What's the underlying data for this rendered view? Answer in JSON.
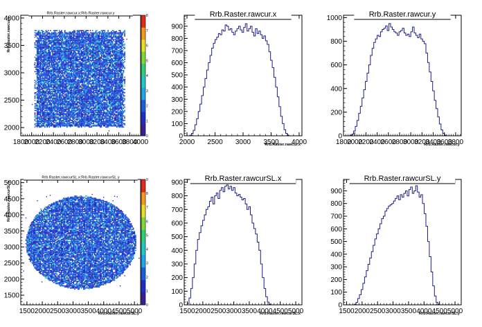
{
  "chart_data": [
    {
      "type": "heatmap",
      "title": "Rrb.Raster.rawcur.x:Rrb.Raster.rawcur.y",
      "xlabel": "",
      "ylabel": "Rrb.Raster.rawcur.y",
      "x_ticks": [
        "1800",
        "2000",
        "2200",
        "2400",
        "2600",
        "2800",
        "3000",
        "3200",
        "3400",
        "3600",
        "3800",
        "4000"
      ],
      "y_ticks": [
        "2000",
        "2500",
        "3000",
        "3500",
        "4000"
      ],
      "colorbar_ticks": [
        "0",
        "1",
        "2",
        "3",
        "4",
        "5",
        "6",
        "7",
        "8"
      ],
      "xlim": [
        1800,
        4000
      ],
      "ylim": [
        1850,
        4050
      ],
      "shape": "square",
      "extent": {
        "x": [
          2050,
          3700
        ],
        "y": [
          2000,
          3780
        ]
      }
    },
    {
      "type": "histogram",
      "title": "Rrb.Raster.rawcur.x",
      "xlabel": "Rrb.Raster.rawcur.x",
      "x_ticks": [
        "2000",
        "2500",
        "3000",
        "3500",
        "4000"
      ],
      "y_ticks": [
        "0",
        "100",
        "200",
        "300",
        "400",
        "500",
        "600",
        "700",
        "800",
        "900"
      ],
      "xlim": [
        1950,
        4050
      ],
      "ylim": [
        0,
        990
      ],
      "bins": {
        "start": 2050,
        "width": 30
      },
      "values": [
        5,
        20,
        45,
        90,
        140,
        200,
        260,
        330,
        400,
        470,
        540,
        600,
        660,
        720,
        760,
        790,
        810,
        840,
        830,
        870,
        860,
        910,
        900,
        870,
        880,
        850,
        830,
        860,
        880,
        900,
        870,
        850,
        890,
        920,
        860,
        880,
        900,
        850,
        820,
        880,
        840,
        860,
        830,
        800,
        820,
        780,
        750,
        690,
        620,
        560,
        480,
        400,
        320,
        240,
        160,
        100,
        50,
        20,
        5
      ]
    },
    {
      "type": "histogram",
      "title": "Rrb.Raster.rawcur.y",
      "xlabel": "Rrb.Raster.rawcur.y",
      "x_ticks": [
        "1800",
        "2000",
        "2200",
        "2400",
        "2600",
        "2800",
        "3000",
        "3200",
        "3400",
        "3600",
        "3800"
      ],
      "y_ticks": [
        "0",
        "200",
        "400",
        "600",
        "800",
        "1000"
      ],
      "xlim": [
        1800,
        3900
      ],
      "ylim": [
        0,
        1020
      ],
      "bins": {
        "start": 1920,
        "width": 30
      },
      "values": [
        5,
        15,
        40,
        80,
        130,
        190,
        250,
        320,
        390,
        460,
        530,
        600,
        680,
        740,
        790,
        820,
        850,
        840,
        880,
        900,
        910,
        930,
        890,
        950,
        920,
        900,
        880,
        870,
        850,
        880,
        890,
        910,
        870,
        850,
        860,
        840,
        880,
        920,
        870,
        850,
        830,
        860,
        820,
        800,
        780,
        700,
        620,
        540,
        460,
        380,
        300,
        230,
        160,
        100,
        50,
        20,
        5
      ]
    },
    {
      "type": "heatmap",
      "title": "Rrb.Raster.rawcurSL.x:Rrb.Raster.rawcurSL.y",
      "xlabel": "Rrb.Raster.rawcurSL.y",
      "ylabel": "Rrb.Raster.rawcurSL.y",
      "x_ticks": [
        "1500",
        "2000",
        "2500",
        "3000",
        "3500",
        "4000",
        "4500",
        "5000"
      ],
      "y_ticks": [
        "1500",
        "2000",
        "2500",
        "3000",
        "3500",
        "4000",
        "4500",
        "5000"
      ],
      "colorbar_ticks": [
        "0",
        "1",
        "2",
        "3",
        "4",
        "5",
        "6",
        "7",
        "8",
        "9"
      ],
      "xlim": [
        1300,
        5200
      ],
      "ylim": [
        1200,
        5100
      ],
      "shape": "disc",
      "extent": {
        "x": [
          1450,
          5050
        ],
        "y": [
          1700,
          4600
        ]
      }
    },
    {
      "type": "histogram",
      "title": "Rrb.Raster.rawcurSL.x",
      "xlabel": "Rrb.Raster.rawcurSL.x",
      "x_ticks": [
        "1500",
        "2000",
        "2500",
        "3000",
        "3500",
        "4000",
        "4500",
        "5000"
      ],
      "y_ticks": [
        "0",
        "100",
        "200",
        "300",
        "400",
        "500",
        "600",
        "700",
        "800",
        "900"
      ],
      "xlim": [
        1400,
        5200
      ],
      "ylim": [
        0,
        920
      ],
      "bins": {
        "start": 1500,
        "width": 55
      },
      "values": [
        10,
        50,
        120,
        200,
        300,
        400,
        480,
        530,
        580,
        620,
        660,
        700,
        720,
        760,
        790,
        740,
        800,
        820,
        780,
        840,
        860,
        830,
        870,
        880,
        850,
        870,
        840,
        860,
        820,
        800,
        810,
        790,
        770,
        780,
        740,
        700,
        720,
        660,
        600,
        560,
        520,
        460,
        400,
        300,
        200,
        120,
        60,
        20,
        5
      ]
    },
    {
      "type": "histogram",
      "title": "Rrb.Raster.rawcurSL.y",
      "xlabel": "Rrb.Raster.rawcurSL.y",
      "x_ticks": [
        "1500",
        "2000",
        "2500",
        "3000",
        "3500",
        "4000",
        "4500",
        "5000"
      ],
      "y_ticks": [
        "0",
        "100",
        "200",
        "300",
        "400",
        "500",
        "600",
        "700",
        "800",
        "900"
      ],
      "xlim": [
        1400,
        5200
      ],
      "ylim": [
        0,
        990
      ],
      "bins": {
        "start": 1750,
        "width": 55
      },
      "values": [
        5,
        20,
        50,
        80,
        120,
        170,
        220,
        270,
        320,
        370,
        420,
        470,
        520,
        560,
        600,
        640,
        680,
        700,
        740,
        760,
        780,
        790,
        800,
        820,
        840,
        860,
        830,
        870,
        850,
        880,
        900,
        860,
        910,
        930,
        880,
        900,
        940,
        890,
        850,
        870,
        800,
        720,
        620,
        500,
        380,
        260,
        150,
        70,
        20,
        5
      ]
    }
  ]
}
